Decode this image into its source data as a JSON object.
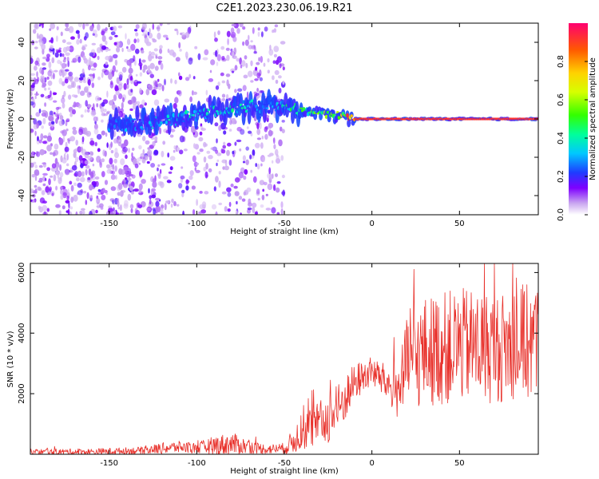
{
  "title": "C2E1.2023.230.06.19.R21",
  "chart_data": [
    {
      "type": "heatmap",
      "name": "spectrogram",
      "xlabel": "Height of straight line (km)",
      "ylabel": "Frequency (Hz)",
      "xlim": [
        -195,
        95
      ],
      "ylim": [
        -50,
        50
      ],
      "xticks": [
        -150,
        -100,
        -50,
        0,
        50
      ],
      "yticks": [
        -40,
        -20,
        0,
        20,
        40
      ],
      "ridge": {
        "x": [
          -150,
          -130,
          -110,
          -90,
          -70,
          -55,
          -45,
          -30,
          -20,
          -10,
          0,
          20,
          50,
          95
        ],
        "freq": [
          -4,
          -2,
          0,
          4,
          6,
          7,
          5,
          3,
          2,
          0,
          0,
          0,
          0,
          0
        ],
        "amplitude": [
          0.25,
          0.3,
          0.35,
          0.4,
          0.35,
          0.3,
          0.45,
          0.55,
          0.6,
          0.9,
          0.92,
          0.92,
          0.92,
          0.92
        ]
      },
      "noise_region": [
        -195,
        -50
      ],
      "colorbar": {
        "label": "Normalized spectral amplitude",
        "range": [
          0,
          1
        ],
        "ticks": [
          "0.0",
          "0.2",
          "0.4",
          "0.6",
          "0.8"
        ]
      }
    },
    {
      "type": "line",
      "name": "snr",
      "xlabel": "Height of straight line (km)",
      "ylabel": "SNR (10 * v/v)",
      "xlim": [
        -195,
        95
      ],
      "ylim": [
        0,
        6300
      ],
      "xticks": [
        -150,
        -100,
        -50,
        0,
        50
      ],
      "yticks": [
        2000,
        4000,
        6000
      ],
      "color": "#e8302a",
      "envelope": {
        "x": [
          -195,
          -160,
          -130,
          -120,
          -110,
          -100,
          -90,
          -80,
          -70,
          -60,
          -50,
          -45,
          -40,
          -30,
          -20,
          -10,
          0,
          10,
          15,
          20,
          30,
          40,
          50,
          60,
          70,
          80,
          90,
          95
        ],
        "base": [
          60,
          70,
          110,
          180,
          220,
          180,
          260,
          300,
          220,
          150,
          180,
          380,
          700,
          900,
          1300,
          2300,
          2700,
          2200,
          2000,
          2800,
          3200,
          3300,
          3400,
          3400,
          3300,
          3400,
          3500,
          3500
        ],
        "spread": [
          150,
          150,
          180,
          260,
          280,
          260,
          450,
          550,
          320,
          220,
          260,
          600,
          900,
          1100,
          1300,
          900,
          700,
          900,
          1400,
          2200,
          2600,
          2700,
          2700,
          2700,
          2600,
          2600,
          2800,
          2800
        ]
      }
    }
  ]
}
